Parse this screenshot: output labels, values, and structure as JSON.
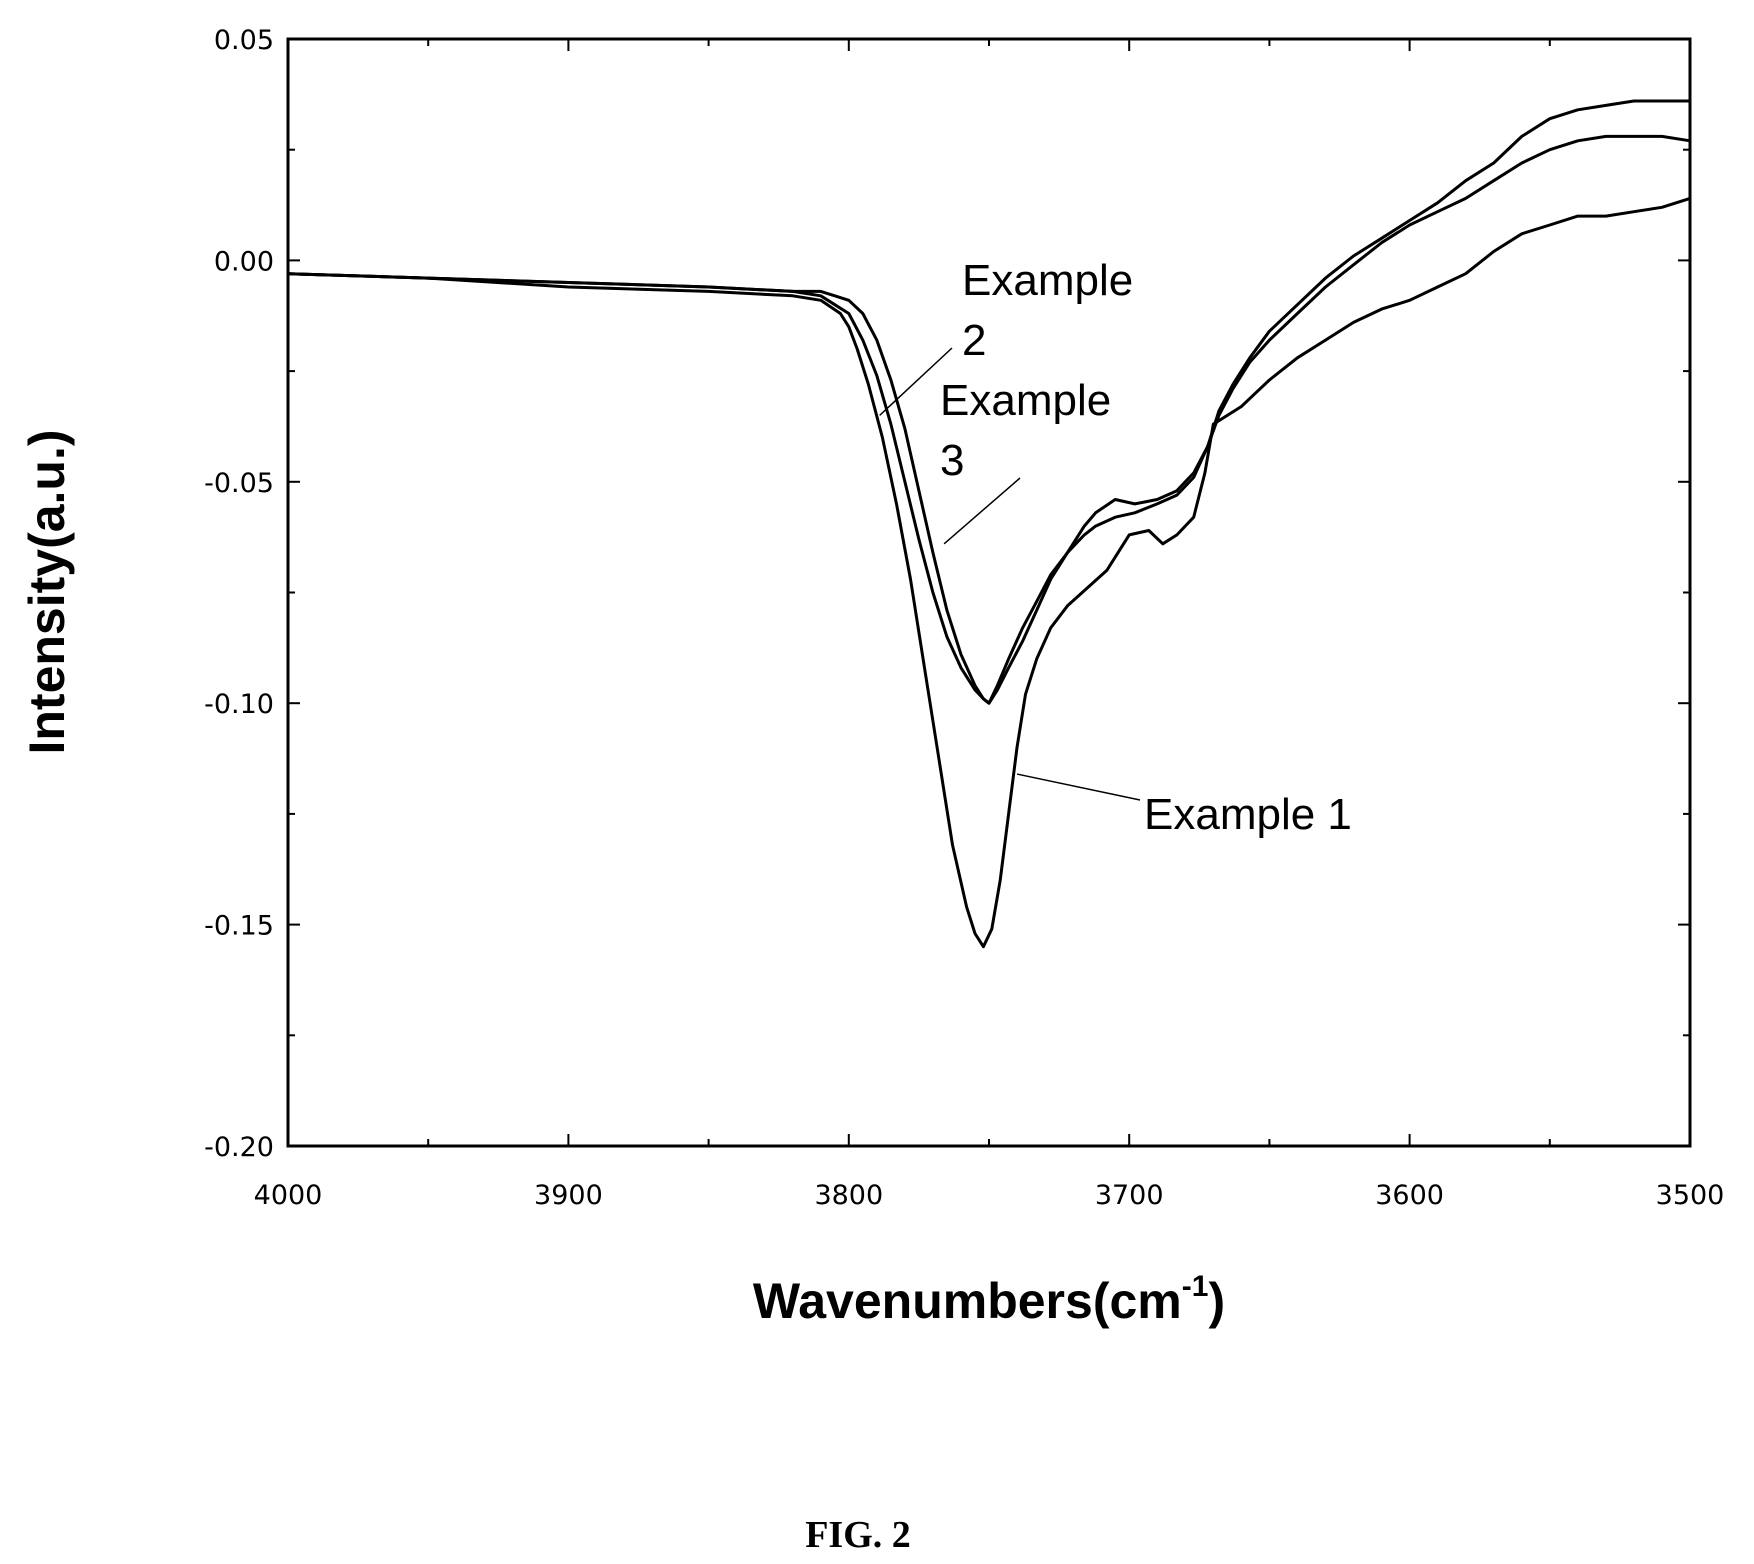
{
  "caption": "FIG. 2",
  "chart_data": {
    "type": "line",
    "xlabel": "Wavenumbers(cm",
    "xlabel_sup": "-1",
    "xlabel_close": ")",
    "ylabel": "Intensity(a.u.)",
    "xlim": [
      4000,
      3500
    ],
    "ylim": [
      -0.2,
      0.05
    ],
    "x_reversed": true,
    "x_ticks": [
      4000,
      3900,
      3800,
      3700,
      3600,
      3500
    ],
    "x_tick_labels": [
      "4000",
      "3900",
      "3800",
      "3700",
      "3600",
      "3500"
    ],
    "y_ticks": [
      0.05,
      0.0,
      -0.05,
      -0.1,
      -0.15,
      -0.2
    ],
    "y_tick_labels": [
      "0.05",
      "0.00",
      "-0.05",
      "-0.10",
      "-0.15",
      "-0.20"
    ],
    "grid": false,
    "legend": "none",
    "series": [
      {
        "name": "Example 1",
        "x": [
          4000,
          3950,
          3900,
          3850,
          3820,
          3810,
          3803,
          3800,
          3797,
          3793,
          3788,
          3783,
          3778,
          3773,
          3768,
          3763,
          3758,
          3755,
          3752,
          3749,
          3746,
          3743,
          3740,
          3737,
          3733,
          3728,
          3722,
          3715,
          3708,
          3700,
          3693,
          3688,
          3683,
          3677,
          3673,
          3670,
          3665,
          3660,
          3655,
          3650,
          3640,
          3630,
          3620,
          3610,
          3600,
          3590,
          3580,
          3570,
          3560,
          3550,
          3540,
          3530,
          3520,
          3510,
          3500
        ],
        "y": [
          -0.003,
          -0.004,
          -0.006,
          -0.007,
          -0.008,
          -0.009,
          -0.012,
          -0.015,
          -0.02,
          -0.028,
          -0.04,
          -0.055,
          -0.072,
          -0.092,
          -0.112,
          -0.132,
          -0.146,
          -0.152,
          -0.155,
          -0.151,
          -0.14,
          -0.125,
          -0.11,
          -0.098,
          -0.09,
          -0.083,
          -0.078,
          -0.074,
          -0.07,
          -0.062,
          -0.061,
          -0.064,
          -0.062,
          -0.058,
          -0.048,
          -0.037,
          -0.035,
          -0.033,
          -0.03,
          -0.027,
          -0.022,
          -0.018,
          -0.014,
          -0.011,
          -0.009,
          -0.006,
          -0.003,
          0.002,
          0.006,
          0.008,
          0.01,
          0.01,
          0.011,
          0.012,
          0.014
        ]
      },
      {
        "name": "Example 2",
        "x": [
          4000,
          3950,
          3900,
          3850,
          3820,
          3810,
          3805,
          3800,
          3795,
          3790,
          3785,
          3780,
          3775,
          3770,
          3765,
          3760,
          3755,
          3752,
          3750,
          3747,
          3743,
          3738,
          3733,
          3728,
          3722,
          3716,
          3712,
          3705,
          3698,
          3690,
          3683,
          3677,
          3672,
          3668,
          3663,
          3657,
          3650,
          3640,
          3630,
          3620,
          3610,
          3600,
          3590,
          3580,
          3570,
          3560,
          3550,
          3540,
          3530,
          3520,
          3510,
          3500
        ],
        "y": [
          -0.003,
          -0.004,
          -0.005,
          -0.006,
          -0.007,
          -0.008,
          -0.01,
          -0.012,
          -0.018,
          -0.026,
          -0.037,
          -0.05,
          -0.063,
          -0.075,
          -0.085,
          -0.092,
          -0.097,
          -0.099,
          -0.1,
          -0.097,
          -0.092,
          -0.086,
          -0.079,
          -0.072,
          -0.066,
          -0.06,
          -0.057,
          -0.054,
          -0.055,
          -0.054,
          -0.052,
          -0.048,
          -0.042,
          -0.034,
          -0.028,
          -0.022,
          -0.016,
          -0.01,
          -0.004,
          0.001,
          0.005,
          0.009,
          0.013,
          0.018,
          0.022,
          0.028,
          0.032,
          0.034,
          0.035,
          0.036,
          0.036,
          0.036
        ]
      },
      {
        "name": "Example 3",
        "x": [
          4000,
          3950,
          3900,
          3850,
          3820,
          3810,
          3805,
          3800,
          3795,
          3790,
          3785,
          3780,
          3775,
          3770,
          3765,
          3760,
          3755,
          3752,
          3750,
          3747,
          3743,
          3738,
          3733,
          3728,
          3722,
          3716,
          3712,
          3705,
          3698,
          3690,
          3683,
          3677,
          3672,
          3668,
          3663,
          3657,
          3650,
          3640,
          3630,
          3620,
          3610,
          3600,
          3590,
          3580,
          3570,
          3560,
          3550,
          3540,
          3530,
          3520,
          3510,
          3500
        ],
        "y": [
          -0.003,
          -0.004,
          -0.005,
          -0.006,
          -0.007,
          -0.007,
          -0.008,
          -0.009,
          -0.012,
          -0.018,
          -0.027,
          -0.038,
          -0.052,
          -0.066,
          -0.079,
          -0.089,
          -0.096,
          -0.099,
          -0.1,
          -0.096,
          -0.09,
          -0.083,
          -0.077,
          -0.071,
          -0.066,
          -0.062,
          -0.06,
          -0.058,
          -0.057,
          -0.055,
          -0.053,
          -0.049,
          -0.042,
          -0.035,
          -0.029,
          -0.023,
          -0.018,
          -0.012,
          -0.006,
          -0.001,
          0.004,
          0.008,
          0.011,
          0.014,
          0.018,
          0.022,
          0.025,
          0.027,
          0.028,
          0.028,
          0.028,
          0.027
        ]
      }
    ],
    "annotations": [
      {
        "series": "Example 1",
        "text": "Example 1",
        "pointer_x": 3740,
        "pointer_y": -0.116
      },
      {
        "series": "Example 2",
        "text_lines": [
          "Example",
          "2"
        ],
        "pointer_x": 3789,
        "pointer_y": -0.035
      },
      {
        "series": "Example 3",
        "text_lines": [
          "Example",
          "3"
        ],
        "pointer_x": 3766,
        "pointer_y": -0.064
      }
    ]
  }
}
